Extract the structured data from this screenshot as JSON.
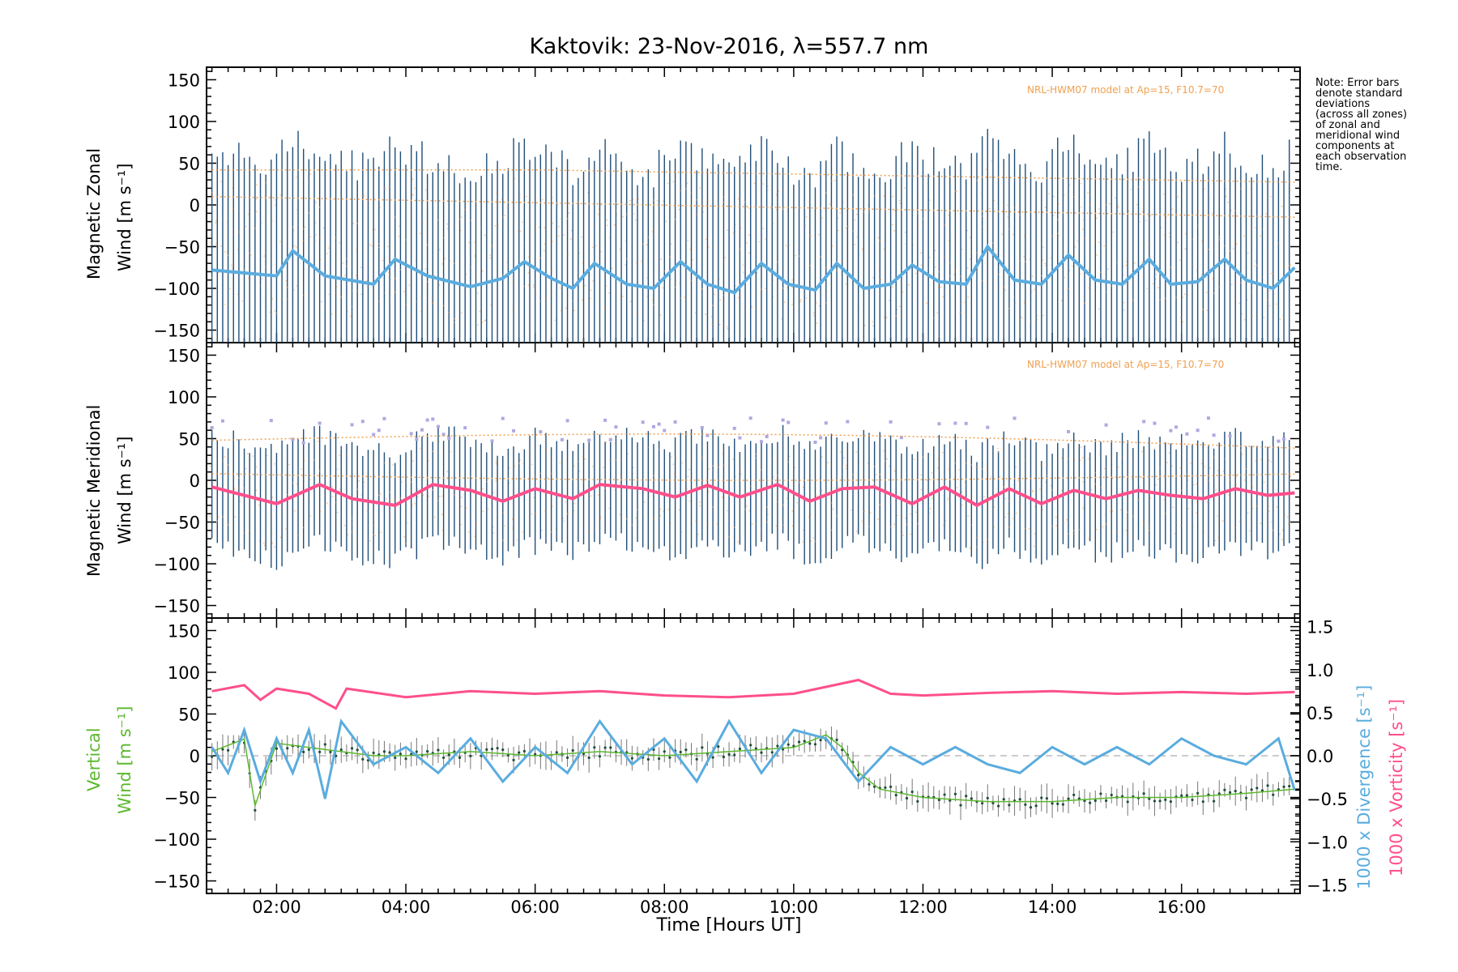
{
  "title": "Kaktovik: 23-Nov-2016, λ=557.7 nm",
  "note": [
    "Note: Error bars",
    "denote standard",
    "deviations",
    "(across all zones)",
    "of zonal and",
    "meridional wind",
    "components at",
    "each observation",
    "time."
  ],
  "model_label": "NRL-HWM07 model at Ap=15, F10.7=70",
  "xlabel": "Time [Hours UT]",
  "panels": {
    "zonal": {
      "ylabel_line1": "Magnetic Zonal",
      "ylabel_line2": "Wind [m s⁻¹]"
    },
    "meridional": {
      "ylabel_line1": "Magnetic Meridional",
      "ylabel_line2": "Wind [m s⁻¹]"
    },
    "vertical": {
      "ylabel_line1": "Vertical",
      "ylabel_line2": "Wind [m s⁻¹]",
      "right_label_divergence": "1000 x Divergence [s⁻¹]",
      "right_label_vorticity": "1000 x Vorticity [s⁻¹]"
    }
  },
  "colors": {
    "zonal": "#5aacdf",
    "zonal_dark": "#2a3ccf",
    "meridional": "#ff4f8a",
    "errorbar": "#1f4e79",
    "model": "#f0a050",
    "vertical": "#5cb82e",
    "divergence": "#5aacdf",
    "vorticity": "#ff4f8a",
    "scatter": "#b0a8e0"
  },
  "chart_data": [
    {
      "type": "line",
      "panel": "zonal",
      "ylim": [
        -165,
        165
      ],
      "xlim": [
        "00:55",
        "17:50"
      ],
      "yticks": [
        150,
        100,
        50,
        0,
        -50,
        -100,
        -150
      ],
      "xticks": [
        "02:00",
        "04:00",
        "06:00",
        "08:00",
        "10:00",
        "12:00",
        "14:00",
        "16:00"
      ],
      "series": [
        {
          "x": [
            "01:00",
            "02:00",
            "02:15",
            "02:45",
            "03:30",
            "03:50",
            "04:20",
            "05:00",
            "05:30",
            "05:50",
            "06:15",
            "06:35",
            "06:55",
            "07:25",
            "07:50",
            "08:15",
            "08:40",
            "09:05",
            "09:30",
            "09:55",
            "10:20",
            "10:40",
            "11:05",
            "11:30",
            "11:50",
            "12:15",
            "12:40",
            "13:00",
            "13:25",
            "13:50",
            "14:15",
            "14:40",
            "15:05",
            "15:30",
            "15:50",
            "16:15",
            "16:40",
            "17:00",
            "17:25",
            "17:45"
          ],
          "values": [
            -78,
            -85,
            -55,
            -85,
            -95,
            -65,
            -85,
            -98,
            -88,
            -68,
            -88,
            -100,
            -70,
            -95,
            -100,
            -68,
            -95,
            -105,
            -70,
            -95,
            -102,
            -70,
            -100,
            -95,
            -72,
            -92,
            -95,
            -50,
            -90,
            -95,
            -60,
            -90,
            -95,
            -65,
            -95,
            -92,
            -65,
            -90,
            -100,
            -75
          ]
        }
      ]
    },
    {
      "type": "line",
      "panel": "meridional",
      "ylim": [
        -165,
        165
      ],
      "yticks": [
        150,
        100,
        50,
        0,
        -50,
        -100,
        -150
      ],
      "series": [
        {
          "x": [
            "01:00",
            "01:30",
            "02:00",
            "02:40",
            "03:10",
            "03:50",
            "04:25",
            "05:00",
            "05:30",
            "06:00",
            "06:35",
            "07:00",
            "07:40",
            "08:10",
            "08:40",
            "09:10",
            "09:45",
            "10:15",
            "10:45",
            "11:15",
            "11:50",
            "12:20",
            "12:50",
            "13:20",
            "13:50",
            "14:20",
            "14:50",
            "15:20",
            "15:50",
            "16:20",
            "16:50",
            "17:20",
            "17:45"
          ],
          "values": [
            -8,
            -18,
            -28,
            -5,
            -22,
            -30,
            -5,
            -12,
            -25,
            -10,
            -22,
            -5,
            -10,
            -20,
            -6,
            -20,
            -5,
            -25,
            -10,
            -8,
            -28,
            -8,
            -30,
            -10,
            -28,
            -12,
            -22,
            -12,
            -18,
            -22,
            -10,
            -18,
            -15
          ]
        }
      ]
    },
    {
      "type": "line",
      "panel": "vertical",
      "ylim": [
        -165,
        165
      ],
      "y2lim": [
        -1.6,
        1.6
      ],
      "yticks": [
        150,
        100,
        50,
        0,
        -50,
        -100,
        -150
      ],
      "y2ticks": [
        1.5,
        1.0,
        0.5,
        0.0,
        -0.5,
        -1.0,
        -1.5
      ],
      "series": [
        {
          "name": "Vertical Wind",
          "axis": "left",
          "x": [
            "01:00",
            "01:30",
            "01:40",
            "02:00",
            "02:30",
            "03:00",
            "03:30",
            "04:00",
            "05:00",
            "06:00",
            "07:00",
            "08:00",
            "09:00",
            "10:00",
            "10:30",
            "10:45",
            "11:00",
            "11:20",
            "12:00",
            "13:00",
            "14:00",
            "15:00",
            "16:00",
            "17:00",
            "17:45"
          ],
          "values": [
            5,
            20,
            -60,
            15,
            10,
            5,
            0,
            0,
            5,
            0,
            5,
            0,
            5,
            10,
            25,
            10,
            -20,
            -40,
            -50,
            -55,
            -55,
            -50,
            -50,
            -45,
            -40
          ]
        },
        {
          "name": "1000 x Divergence",
          "axis": "right",
          "x": [
            "01:00",
            "01:15",
            "01:30",
            "01:45",
            "02:00",
            "02:15",
            "02:30",
            "02:45",
            "03:00",
            "03:30",
            "04:00",
            "04:30",
            "05:00",
            "05:30",
            "06:00",
            "06:30",
            "07:00",
            "07:30",
            "08:00",
            "08:30",
            "09:00",
            "09:30",
            "10:00",
            "10:30",
            "11:00",
            "11:30",
            "12:00",
            "12:30",
            "13:00",
            "13:30",
            "14:00",
            "14:30",
            "15:00",
            "15:30",
            "16:00",
            "16:30",
            "17:00",
            "17:30",
            "17:45"
          ],
          "values": [
            0.1,
            -0.2,
            0.3,
            -0.3,
            0.2,
            -0.2,
            0.3,
            -0.5,
            0.4,
            -0.1,
            0.1,
            -0.2,
            0.2,
            -0.3,
            0.1,
            -0.2,
            0.4,
            -0.1,
            0.2,
            -0.3,
            0.4,
            -0.2,
            0.3,
            0.2,
            -0.3,
            0.1,
            -0.1,
            0.1,
            -0.1,
            -0.2,
            0.1,
            -0.1,
            0.1,
            -0.1,
            0.2,
            0.0,
            -0.1,
            0.2,
            -0.4
          ]
        },
        {
          "name": "1000 x Vorticity",
          "axis": "right",
          "x": [
            "01:00",
            "01:30",
            "01:45",
            "02:00",
            "02:30",
            "02:55",
            "03:05",
            "04:00",
            "05:00",
            "06:00",
            "07:00",
            "08:00",
            "09:00",
            "10:00",
            "11:00",
            "11:30",
            "12:00",
            "13:00",
            "14:00",
            "15:00",
            "16:00",
            "17:00",
            "17:45"
          ],
          "values": [
            0.75,
            0.82,
            0.65,
            0.78,
            0.72,
            0.55,
            0.78,
            0.68,
            0.75,
            0.72,
            0.75,
            0.7,
            0.68,
            0.72,
            0.88,
            0.72,
            0.7,
            0.73,
            0.75,
            0.72,
            0.74,
            0.72,
            0.74
          ]
        }
      ]
    }
  ]
}
